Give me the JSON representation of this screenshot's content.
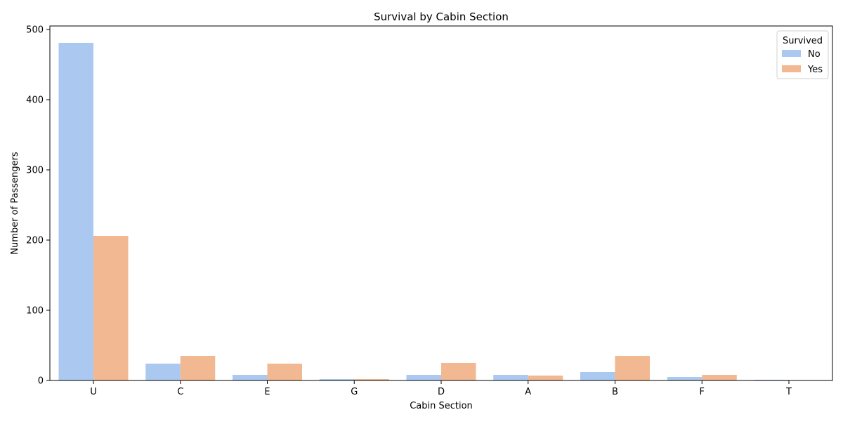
{
  "chart_data": {
    "type": "bar",
    "title": "Survival by Cabin Section",
    "xlabel": "Cabin Section",
    "ylabel": "Number of Passengers",
    "categories": [
      "U",
      "C",
      "E",
      "G",
      "D",
      "A",
      "B",
      "F",
      "T"
    ],
    "series": [
      {
        "name": "No",
        "color": "#abc9f0",
        "values": [
          481,
          24,
          8,
          2,
          8,
          8,
          12,
          5,
          1
        ]
      },
      {
        "name": "Yes",
        "color": "#f1b891",
        "values": [
          206,
          35,
          24,
          2,
          25,
          7,
          35,
          8,
          0
        ]
      }
    ],
    "ylim": [
      0,
      505
    ],
    "yticks": [
      0,
      100,
      200,
      300,
      400,
      500
    ],
    "grid": false,
    "legend": {
      "title": "Survived",
      "placement": "top-right"
    }
  }
}
